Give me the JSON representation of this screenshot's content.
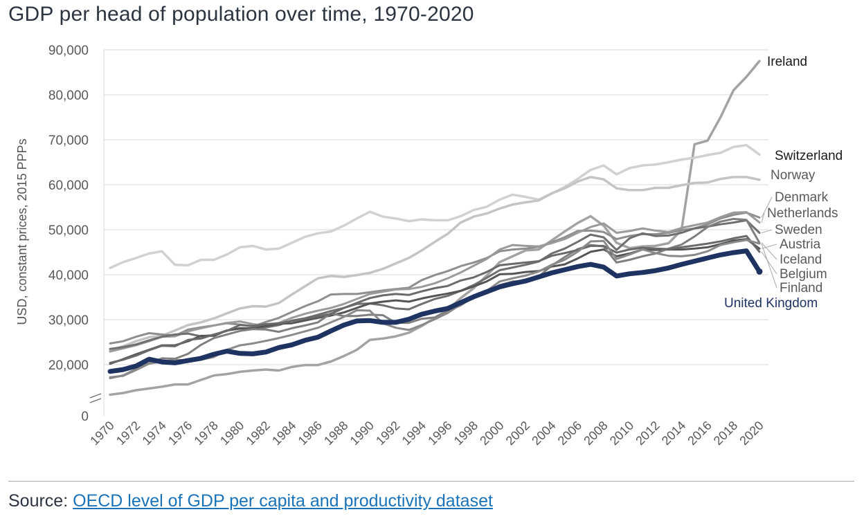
{
  "title": "GDP per head of population over time, 1970-2020",
  "source": {
    "label": "Source:",
    "link_text": "OECD level of GDP per capita and productivity dataset"
  },
  "chart_data": {
    "type": "line",
    "title": "GDP per head of population over time, 1970-2020",
    "ylabel": "USD, constant prices, 2015 PPPs",
    "xlabel": "",
    "ylim": [
      0,
      90000
    ],
    "axis_break": true,
    "grid": true,
    "yticks": [
      0,
      20000,
      30000,
      40000,
      50000,
      60000,
      70000,
      80000,
      90000
    ],
    "ytick_labels": [
      "0",
      "20,000",
      "30,000",
      "40,000",
      "50,000",
      "60,000",
      "70,000",
      "80,000",
      "90,000"
    ],
    "xtick_labels": [
      "1970",
      "1972",
      "1974",
      "1976",
      "1978",
      "1980",
      "1982",
      "1984",
      "1986",
      "1988",
      "1990",
      "1992",
      "1994",
      "1996",
      "1998",
      "2000",
      "2002",
      "2004",
      "2006",
      "2008",
      "2010",
      "2012",
      "2014",
      "2016",
      "2018",
      "2020"
    ],
    "x": [
      1970,
      1971,
      1972,
      1973,
      1974,
      1975,
      1976,
      1977,
      1978,
      1979,
      1980,
      1981,
      1982,
      1983,
      1984,
      1985,
      1986,
      1987,
      1988,
      1989,
      1990,
      1991,
      1992,
      1993,
      1994,
      1995,
      1996,
      1997,
      1998,
      1999,
      2000,
      2001,
      2002,
      2003,
      2004,
      2005,
      2006,
      2007,
      2008,
      2009,
      2010,
      2011,
      2012,
      2013,
      2014,
      2015,
      2016,
      2017,
      2018,
      2019,
      2020
    ],
    "series": [
      {
        "name": "Ireland",
        "color": "#a3a3a3",
        "width": 3.5,
        "values": [
          13300,
          13700,
          14300,
          14700,
          15100,
          15600,
          15600,
          16600,
          17600,
          17900,
          18400,
          18700,
          18900,
          18700,
          19500,
          19900,
          19900,
          20700,
          21900,
          23300,
          25500,
          25800,
          26300,
          27100,
          28600,
          30400,
          32200,
          34800,
          37000,
          39800,
          42800,
          44100,
          45400,
          45600,
          47600,
          49600,
          51500,
          53000,
          50900,
          47100,
          45900,
          46300,
          46400,
          47000,
          49900,
          69000,
          69800,
          75000,
          81000,
          84000,
          87500
        ]
      },
      {
        "name": "Switzerland",
        "color": "#d1d1d1",
        "width": 3.5,
        "values": [
          41500,
          42800,
          43700,
          44700,
          45200,
          42200,
          42100,
          43300,
          43300,
          44500,
          46100,
          46400,
          45600,
          45800,
          47100,
          48400,
          49200,
          49600,
          50900,
          52500,
          54000,
          52900,
          52500,
          51900,
          52300,
          52100,
          52100,
          53000,
          54400,
          55100,
          56700,
          57800,
          57300,
          56700,
          58000,
          59500,
          61300,
          63300,
          64300,
          62300,
          63700,
          64300,
          64500,
          65000,
          65600,
          66000,
          66600,
          67100,
          68400,
          68800,
          66700
        ]
      },
      {
        "name": "Norway",
        "color": "#c4c4c4",
        "width": 3.5,
        "values": [
          23100,
          24100,
          25200,
          26100,
          26400,
          27600,
          28800,
          29400,
          30300,
          31400,
          32500,
          33000,
          32900,
          33700,
          35600,
          37400,
          39200,
          39700,
          39500,
          39900,
          40400,
          41300,
          42500,
          43700,
          45400,
          47300,
          49100,
          51600,
          52900,
          53600,
          54700,
          55600,
          56100,
          56500,
          58100,
          59200,
          60700,
          61700,
          61200,
          59200,
          58800,
          58800,
          59300,
          59300,
          59900,
          60400,
          60500,
          61300,
          61700,
          61700,
          61100
        ]
      },
      {
        "name": "Denmark",
        "color": "#8e8e8e",
        "width": 3,
        "values": [
          24700,
          25200,
          26200,
          27000,
          26700,
          26400,
          27800,
          28300,
          28700,
          29200,
          28900,
          28500,
          29500,
          30400,
          31700,
          33000,
          34100,
          35600,
          35700,
          35700,
          36100,
          36500,
          36800,
          37100,
          38800,
          39900,
          40800,
          41900,
          42700,
          43700,
          45200,
          45600,
          45800,
          46200,
          47200,
          48300,
          49700,
          49800,
          49500,
          47900,
          48600,
          49000,
          49000,
          49300,
          49900,
          50300,
          51200,
          52500,
          53300,
          53800,
          52700
        ]
      },
      {
        "name": "Netherlands",
        "color": "#9a9a9a",
        "width": 3,
        "values": [
          22900,
          23600,
          24300,
          25200,
          26200,
          26300,
          27400,
          28100,
          28700,
          29300,
          29600,
          29000,
          28700,
          29300,
          30400,
          31300,
          32000,
          32600,
          33500,
          34600,
          35700,
          36200,
          36700,
          36800,
          37300,
          38100,
          39200,
          40500,
          42000,
          43500,
          45600,
          46600,
          46400,
          46300,
          47000,
          47900,
          49300,
          50600,
          51400,
          49300,
          49700,
          50300,
          49800,
          49500,
          50400,
          51000,
          51600,
          52800,
          53800,
          53900,
          51600
        ]
      },
      {
        "name": "Sweden",
        "color": "#6f6f6f",
        "width": 3,
        "values": [
          23500,
          23900,
          24500,
          25400,
          26200,
          26700,
          26900,
          26300,
          26600,
          27600,
          28000,
          28000,
          28300,
          28800,
          29800,
          30300,
          31100,
          31900,
          32600,
          33500,
          33600,
          33200,
          32500,
          32300,
          33500,
          34600,
          35300,
          36400,
          37700,
          39300,
          41000,
          41600,
          42200,
          42900,
          44700,
          45800,
          47300,
          48900,
          48300,
          45500,
          48100,
          49200,
          48600,
          48700,
          49300,
          50300,
          50700,
          51200,
          51600,
          52100,
          49300
        ]
      },
      {
        "name": "Austria",
        "color": "#555555",
        "width": 3,
        "values": [
          20200,
          21200,
          22300,
          23300,
          24300,
          24300,
          25200,
          26400,
          26400,
          27600,
          28100,
          28100,
          28600,
          29100,
          29200,
          29800,
          30400,
          30900,
          31600,
          32600,
          33600,
          34000,
          34300,
          34000,
          34700,
          35300,
          35800,
          36400,
          37400,
          38500,
          40100,
          40200,
          40600,
          40800,
          41800,
          42300,
          43600,
          45100,
          45600,
          44100,
          44700,
          45600,
          45500,
          45600,
          45600,
          45800,
          46100,
          46800,
          47600,
          47900,
          45800
        ]
      },
      {
        "name": "Iceland",
        "color": "#7f7f7f",
        "width": 3,
        "values": [
          17000,
          17600,
          19000,
          20300,
          21400,
          21300,
          22400,
          24400,
          25900,
          26700,
          27500,
          27900,
          27800,
          27300,
          28100,
          28700,
          29400,
          31400,
          30800,
          30800,
          31100,
          31000,
          29300,
          29300,
          30200,
          30500,
          31900,
          33200,
          35000,
          36200,
          37700,
          38500,
          38600,
          39600,
          42000,
          43900,
          45700,
          46600,
          46300,
          42700,
          43300,
          44100,
          44700,
          45800,
          46700,
          48500,
          50600,
          51800,
          52400,
          52200,
          47100
        ]
      },
      {
        "name": "Belgium",
        "color": "#6a6a6a",
        "width": 3,
        "values": [
          20400,
          21100,
          22000,
          23200,
          24200,
          24100,
          25500,
          25800,
          26700,
          27500,
          28800,
          28600,
          29000,
          29200,
          29700,
          30200,
          30700,
          31300,
          32600,
          33700,
          34800,
          35400,
          35700,
          35500,
          36300,
          37000,
          37500,
          38700,
          39400,
          40600,
          42100,
          42400,
          42700,
          43000,
          44200,
          44800,
          45500,
          46400,
          46400,
          44900,
          45600,
          46000,
          45800,
          45700,
          46100,
          46500,
          46900,
          47400,
          48100,
          48600,
          45100
        ]
      },
      {
        "name": "Finland",
        "color": "#8a8a8a",
        "width": 3,
        "values": [
          17200,
          17500,
          18800,
          20200,
          20700,
          21000,
          21000,
          21100,
          21700,
          23300,
          24300,
          24700,
          25300,
          25900,
          26600,
          27400,
          28200,
          29400,
          30600,
          32100,
          32000,
          29200,
          28200,
          27700,
          28800,
          30100,
          31500,
          33400,
          35100,
          36400,
          38500,
          39200,
          39800,
          40700,
          42200,
          43300,
          45100,
          47400,
          47500,
          43500,
          44500,
          45600,
          44800,
          44200,
          44100,
          44400,
          45200,
          46600,
          47200,
          47700,
          46900
        ]
      },
      {
        "name": "United Kingdom",
        "color": "#1f3363",
        "width": 7,
        "values": [
          18500,
          18900,
          19700,
          21200,
          20600,
          20400,
          20900,
          21400,
          22300,
          23000,
          22500,
          22400,
          22800,
          23800,
          24400,
          25400,
          26100,
          27500,
          28800,
          29700,
          29800,
          29400,
          29400,
          30100,
          31200,
          31900,
          32500,
          33800,
          35100,
          36200,
          37300,
          38000,
          38600,
          39500,
          40400,
          41100,
          41800,
          42300,
          41700,
          39700,
          40200,
          40500,
          40900,
          41500,
          42300,
          43000,
          43700,
          44400,
          44900,
          45300,
          40700
        ]
      }
    ]
  }
}
